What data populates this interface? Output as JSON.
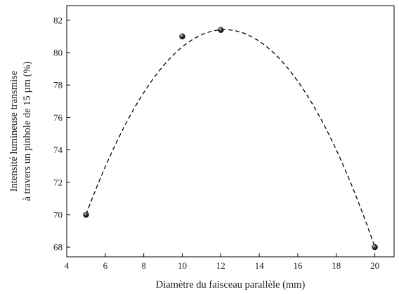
{
  "chart_data": {
    "type": "scatter",
    "xlabel": "Diamètre du faisceau parallèle (mm)",
    "ylabel_lines": [
      "Intensité lumineuse transmise",
      "à travers un pinhole de 15 µm (%)"
    ],
    "xlim": [
      4,
      21
    ],
    "ylim": [
      67.4,
      82.9
    ],
    "xticks": [
      4,
      6,
      8,
      10,
      12,
      14,
      16,
      18,
      20
    ],
    "yticks": [
      68,
      70,
      72,
      74,
      76,
      78,
      80,
      82
    ],
    "grid": false,
    "series": [
      {
        "points": [
          {
            "x": 5,
            "y": 70.0
          },
          {
            "x": 10,
            "y": 81.0
          },
          {
            "x": 12,
            "y": 81.4
          },
          {
            "x": 20,
            "y": 68.0
          }
        ],
        "fit_curve": {
          "style": "dashed",
          "type": "polynomial",
          "x_range": [
            5,
            20
          ],
          "samples": [
            {
              "x": 5,
              "y": 70.0
            },
            {
              "x": 7,
              "y": 76.0
            },
            {
              "x": 9,
              "y": 79.8
            },
            {
              "x": 10,
              "y": 80.9
            },
            {
              "x": 11,
              "y": 81.4
            },
            {
              "x": 12,
              "y": 81.4
            },
            {
              "x": 14,
              "y": 80.2
            },
            {
              "x": 16,
              "y": 77.5
            },
            {
              "x": 18,
              "y": 73.5
            },
            {
              "x": 20,
              "y": 68.0
            }
          ]
        }
      }
    ]
  }
}
